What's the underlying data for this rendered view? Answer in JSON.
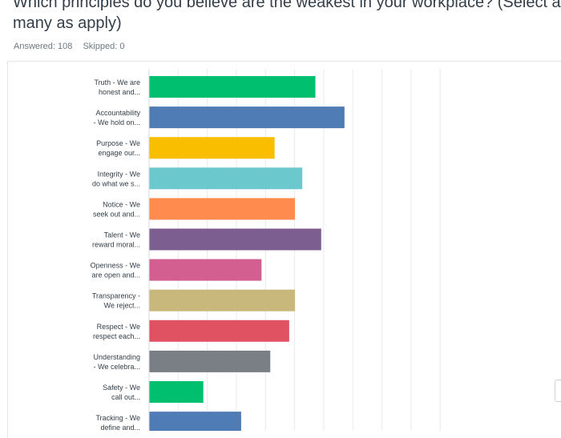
{
  "title_line1": "Which principles do you believe are the weakest in your workplace? (Select as",
  "title_line2": "many as apply)",
  "answered": "Answered: 108",
  "skipped": "Skipped: 0",
  "chart_data": {
    "type": "bar",
    "orientation": "horizontal",
    "title": "",
    "xlabel": "",
    "ylabel": "",
    "xlim": [
      0,
      100
    ],
    "grid": true,
    "categories": [
      [
        "Truth - We are",
        "honest and..."
      ],
      [
        "Accountability",
        "- We hold on..."
      ],
      [
        "Purpose - We",
        "engage our..."
      ],
      [
        "Integrity - We",
        "do what we s..."
      ],
      [
        "Notice - We",
        "seek out and..."
      ],
      [
        "Talent - We",
        "reward moral..."
      ],
      [
        "Openness - We",
        "are open and..."
      ],
      [
        "Transparency -",
        "We reject..."
      ],
      [
        "Respect - We",
        "respect each..."
      ],
      [
        "Understanding",
        "- We celebra..."
      ],
      [
        "Safety - We",
        "call out..."
      ],
      [
        "Tracking - We",
        "define and..."
      ]
    ],
    "values": [
      57,
      67,
      43,
      52.5,
      50,
      59,
      38.5,
      50,
      48,
      41.5,
      18.5,
      31.5
    ],
    "colors": [
      "#00bf6f",
      "#507cb6",
      "#f9be00",
      "#6bc8cd",
      "#ff8b4f",
      "#7d5e90",
      "#d25f90",
      "#c8b87b",
      "#e05162",
      "#7a7f86",
      "#00bf6f",
      "#507cb6"
    ]
  }
}
